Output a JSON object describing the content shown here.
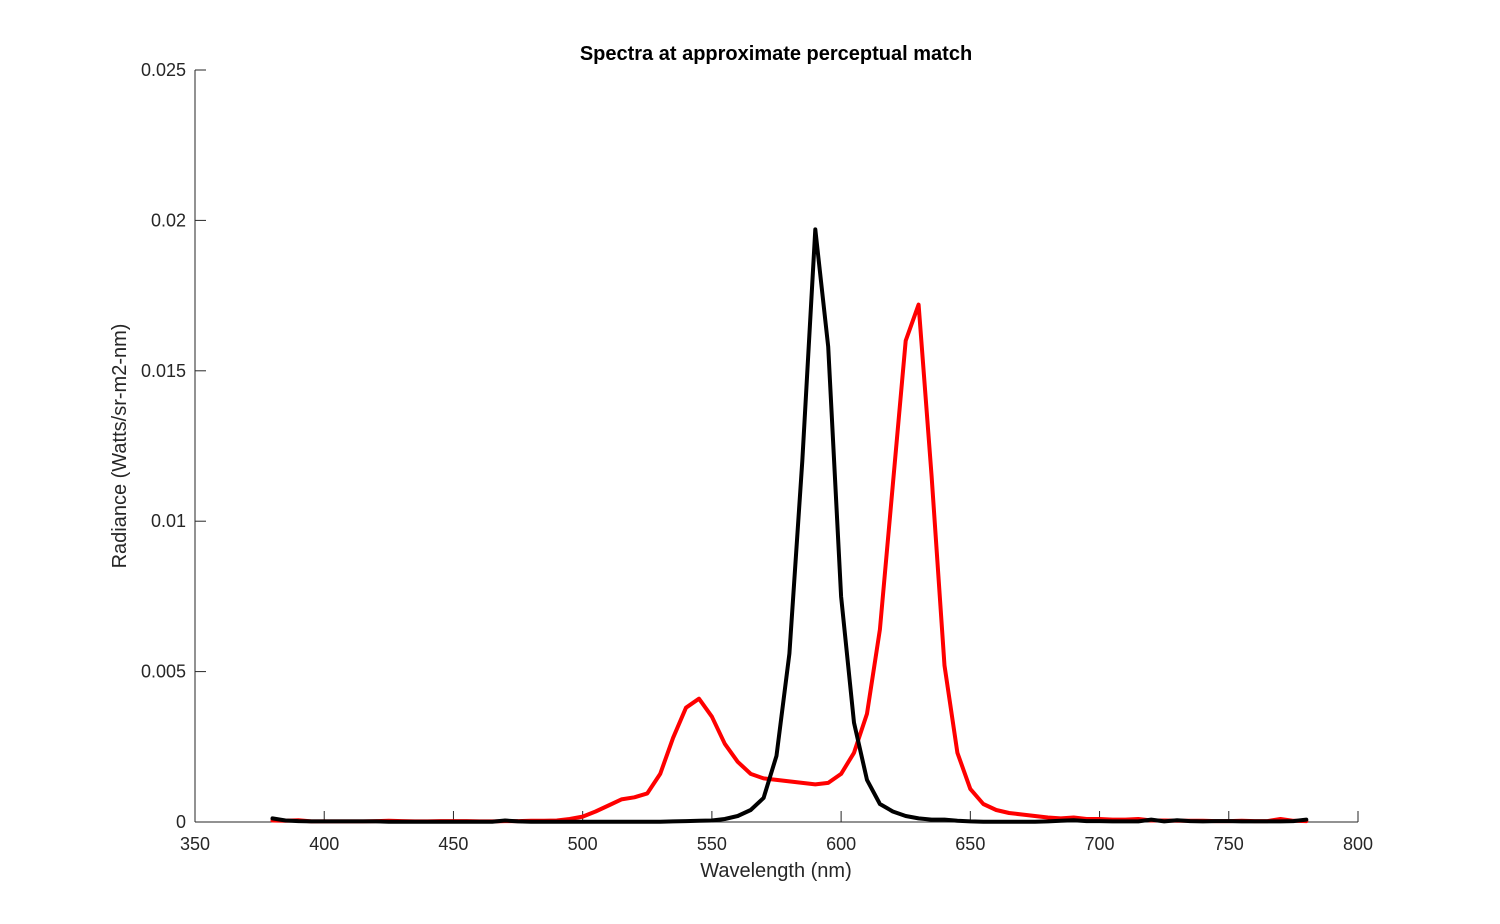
{
  "chart_data": {
    "type": "line",
    "title": "Spectra at approximate perceptual match",
    "xlabel": "Wavelength (nm)",
    "ylabel": "Radiance (Watts/sr-m2-nm)",
    "xlim": [
      350,
      800
    ],
    "ylim": [
      0,
      0.025
    ],
    "xticks": [
      350,
      400,
      450,
      500,
      550,
      600,
      650,
      700,
      750,
      800
    ],
    "yticks": [
      0,
      0.005,
      0.01,
      0.015,
      0.02,
      0.025
    ],
    "xtick_labels": [
      "350",
      "400",
      "450",
      "500",
      "550",
      "600",
      "650",
      "700",
      "750",
      "800"
    ],
    "ytick_labels": [
      "0",
      "0.005",
      "0.01",
      "0.015",
      "0.02",
      "0.025"
    ],
    "grid": false,
    "legend": "none",
    "series": [
      {
        "color": "#ff0000",
        "x": [
          380,
          385,
          390,
          395,
          400,
          405,
          410,
          415,
          420,
          425,
          430,
          435,
          440,
          445,
          450,
          455,
          460,
          465,
          470,
          475,
          480,
          485,
          490,
          495,
          500,
          505,
          510,
          515,
          520,
          525,
          530,
          535,
          540,
          545,
          550,
          555,
          560,
          565,
          570,
          575,
          580,
          585,
          590,
          595,
          600,
          605,
          610,
          615,
          620,
          625,
          630,
          635,
          640,
          645,
          650,
          655,
          660,
          665,
          670,
          675,
          680,
          685,
          690,
          695,
          700,
          705,
          710,
          715,
          720,
          725,
          730,
          735,
          740,
          745,
          750,
          755,
          760,
          765,
          770,
          775,
          780
        ],
        "y": [
          5e-05,
          4e-05,
          6e-05,
          2e-05,
          2e-05,
          2e-05,
          2e-05,
          2e-05,
          3e-05,
          4e-05,
          3e-05,
          2e-05,
          2e-05,
          3e-05,
          3e-05,
          3e-05,
          2e-05,
          2e-05,
          3e-05,
          3e-05,
          4e-05,
          4e-05,
          5e-05,
          0.0001,
          0.00018,
          0.00035,
          0.00055,
          0.00075,
          0.00082,
          0.00095,
          0.0016,
          0.0028,
          0.0038,
          0.0041,
          0.0035,
          0.0026,
          0.002,
          0.0016,
          0.00145,
          0.0014,
          0.00135,
          0.0013,
          0.00125,
          0.0013,
          0.0016,
          0.0023,
          0.0036,
          0.0064,
          0.0112,
          0.016,
          0.0172,
          0.0115,
          0.0052,
          0.0023,
          0.0011,
          0.0006,
          0.0004,
          0.0003,
          0.00025,
          0.0002,
          0.00015,
          0.00012,
          0.00015,
          0.0001,
          0.0001,
          8e-05,
          8e-05,
          0.0001,
          5e-05,
          5e-05,
          4e-05,
          4e-05,
          4e-05,
          3e-05,
          3e-05,
          4e-05,
          3e-05,
          3e-05,
          0.0001,
          4e-05,
          3e-05
        ]
      },
      {
        "color": "#000000",
        "x": [
          380,
          385,
          390,
          395,
          400,
          405,
          410,
          415,
          420,
          425,
          430,
          435,
          440,
          445,
          450,
          455,
          460,
          465,
          470,
          475,
          480,
          485,
          490,
          495,
          500,
          505,
          510,
          515,
          520,
          525,
          530,
          535,
          540,
          545,
          550,
          555,
          560,
          565,
          570,
          575,
          580,
          585,
          590,
          595,
          600,
          605,
          610,
          615,
          620,
          625,
          630,
          635,
          640,
          645,
          650,
          655,
          660,
          665,
          670,
          675,
          680,
          685,
          690,
          695,
          700,
          705,
          710,
          715,
          720,
          725,
          730,
          735,
          740,
          745,
          750,
          755,
          760,
          765,
          770,
          775,
          780
        ],
        "y": [
          0.00012,
          5e-05,
          3e-05,
          2e-05,
          2e-05,
          2e-05,
          2e-05,
          2e-05,
          2e-05,
          1e-05,
          1e-05,
          1e-05,
          1e-05,
          1e-05,
          1e-05,
          1e-05,
          1e-05,
          1e-05,
          5e-05,
          2e-05,
          1e-05,
          1e-05,
          1e-05,
          1e-05,
          1e-05,
          1e-05,
          1e-05,
          1e-05,
          1e-05,
          1e-05,
          1e-05,
          2e-05,
          3e-05,
          4e-05,
          5e-05,
          0.0001,
          0.0002,
          0.0004,
          0.0008,
          0.0022,
          0.0056,
          0.012,
          0.0197,
          0.0158,
          0.0075,
          0.0033,
          0.0014,
          0.0006,
          0.00035,
          0.0002,
          0.00012,
          8e-05,
          8e-05,
          4e-05,
          2e-05,
          1e-05,
          1e-05,
          1e-05,
          1e-05,
          1e-05,
          2e-05,
          4e-05,
          6e-05,
          3e-05,
          3e-05,
          2e-05,
          2e-05,
          2e-05,
          8e-05,
          2e-05,
          6e-05,
          3e-05,
          2e-05,
          3e-05,
          3e-05,
          2e-05,
          2e-05,
          2e-05,
          2e-05,
          3e-05,
          8e-05
        ]
      }
    ]
  }
}
